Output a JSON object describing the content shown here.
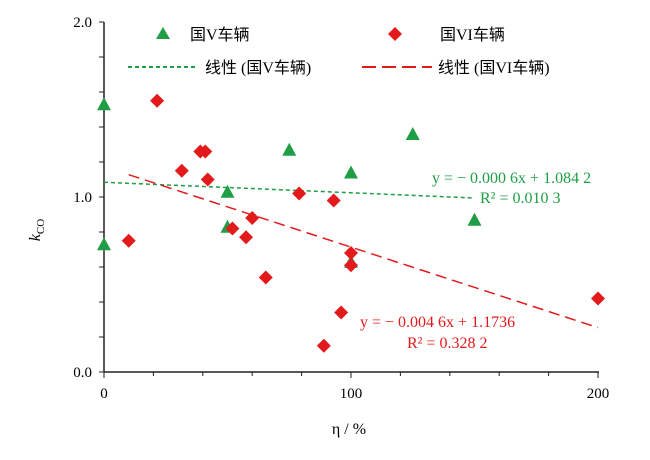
{
  "chart_data": {
    "type": "scatter",
    "xlabel": "η / %",
    "ylabel": "k_CO",
    "ylabel_main": "k",
    "ylabel_sub": "CO",
    "xlim": [
      0,
      200
    ],
    "ylim": [
      0.0,
      2.0
    ],
    "xticks": [
      0,
      100,
      200
    ],
    "xtick_labels": [
      "0",
      "100",
      "200"
    ],
    "yticks": [
      0.0,
      1.0,
      2.0
    ],
    "ytick_labels": [
      "0.0",
      "1.0",
      "2.0"
    ],
    "legend_position": "top",
    "series": [
      {
        "name": "国V车辆",
        "marker": "triangle",
        "color": "#1f9e45",
        "x": [
          0,
          0,
          50,
          50,
          75,
          100,
          100,
          125,
          150
        ],
        "y": [
          1.53,
          0.73,
          1.03,
          0.83,
          1.27,
          1.14,
          0.63,
          1.36,
          0.87
        ]
      },
      {
        "name": "国VI车辆",
        "marker": "diamond",
        "color": "#e31a1c",
        "x": [
          10,
          21.5,
          31.5,
          39,
          41,
          42,
          52,
          57.5,
          60,
          65.5,
          79,
          89,
          93,
          96,
          100,
          100,
          200
        ],
        "y": [
          0.75,
          1.55,
          1.15,
          1.26,
          1.26,
          1.1,
          0.82,
          0.77,
          0.88,
          0.54,
          1.02,
          0.15,
          0.98,
          0.34,
          0.68,
          0.61,
          0.42
        ]
      }
    ],
    "trendlines": [
      {
        "name": "线性 (国V车辆)",
        "color": "#1f9e45",
        "slope": -0.0006,
        "intercept": 1.0842,
        "x_range": [
          0,
          150
        ],
        "equation": "y = − 0.000 6x + 1.084 2",
        "r2_label": "R² = 0.010 3"
      },
      {
        "name": "线性 (国VI车辆)",
        "color": "#e31a1c",
        "slope": -0.0046,
        "intercept": 1.1736,
        "x_range": [
          10,
          200
        ],
        "equation": "y = − 0.004 6x + 1.1736",
        "r2_label": "R² = 0.328 2"
      }
    ]
  }
}
